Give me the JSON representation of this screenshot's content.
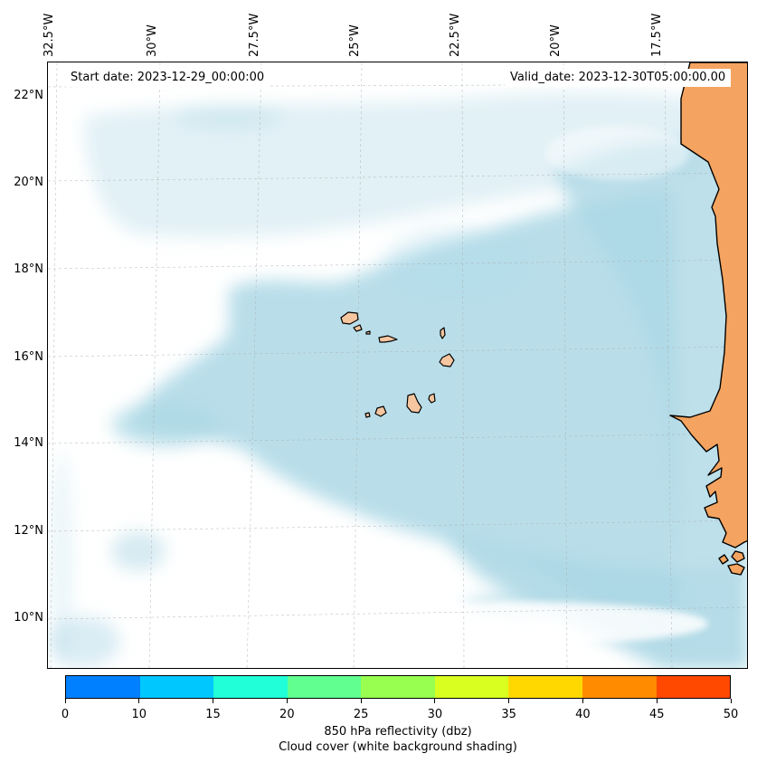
{
  "map": {
    "start_date": "Start date: 2023-12-29_00:00:00",
    "valid_date": "Valid_date: 2023-12-30T05:00:00.00",
    "lon_labels": [
      "32.5°W",
      "30°W",
      "27.5°W",
      "25°W",
      "22.5°W",
      "20°W",
      "17.5°W"
    ],
    "lat_labels": [
      "22°N",
      "20°N",
      "18°N",
      "16°N",
      "14°N",
      "12°N",
      "10°N"
    ],
    "ocean_color": "#ffffff",
    "cloud_color": "#add8e6",
    "land_color": "#f4a460",
    "coastline_color": "#000000"
  },
  "colorbar": {
    "colors": [
      "#0080ff",
      "#00c8ff",
      "#20ffd8",
      "#60ff90",
      "#98ff50",
      "#d8ff20",
      "#ffd800",
      "#ff8c00",
      "#ff4800"
    ],
    "ticks": [
      "0",
      "10",
      "15",
      "20",
      "25",
      "30",
      "35",
      "40",
      "45",
      "50"
    ],
    "label": "850 hPa reflectivity (dbz)",
    "sublabel": "Cloud cover (white background shading)"
  }
}
